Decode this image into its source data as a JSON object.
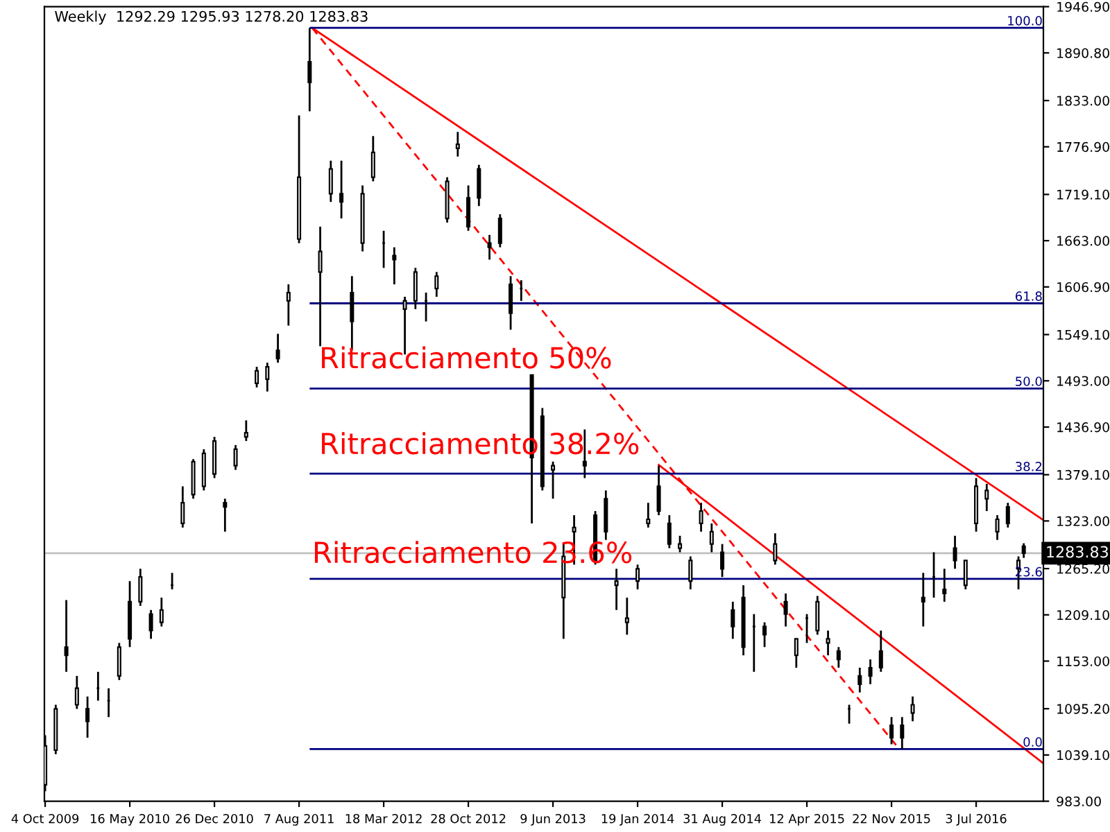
{
  "chart_data": {
    "type": "candlestick",
    "title": "Weekly  1292.29 1295.93 1278.20 1283.83",
    "x": [
      "2009-10-04",
      "2009-11-01",
      "2009-11-29",
      "2009-12-27",
      "2010-01-24",
      "2010-02-21",
      "2010-03-21",
      "2010-04-18",
      "2010-05-16",
      "2010-06-13",
      "2010-07-11",
      "2010-08-08",
      "2010-09-05",
      "2010-10-03",
      "2010-10-31",
      "2010-11-28",
      "2010-12-26",
      "2011-01-23",
      "2011-02-20",
      "2011-03-20",
      "2011-04-17",
      "2011-05-15",
      "2011-06-12",
      "2011-07-10",
      "2011-08-07",
      "2011-09-04",
      "2011-10-02",
      "2011-10-30",
      "2011-11-27",
      "2011-12-25",
      "2012-01-22",
      "2012-02-19",
      "2012-03-18",
      "2012-04-15",
      "2012-05-13",
      "2012-06-10",
      "2012-07-08",
      "2012-08-05",
      "2012-09-02",
      "2012-09-30",
      "2012-10-28",
      "2012-11-25",
      "2012-12-23",
      "2013-01-20",
      "2013-02-17",
      "2013-03-17",
      "2013-04-14",
      "2013-05-12",
      "2013-06-09",
      "2013-07-07",
      "2013-08-04",
      "2013-09-01",
      "2013-09-29",
      "2013-10-27",
      "2013-11-24",
      "2013-12-22",
      "2014-01-19",
      "2014-02-16",
      "2014-03-16",
      "2014-04-13",
      "2014-05-11",
      "2014-06-08",
      "2014-07-06",
      "2014-08-03",
      "2014-08-31",
      "2014-09-28",
      "2014-10-26",
      "2014-11-23",
      "2014-12-21",
      "2015-01-18",
      "2015-02-15",
      "2015-03-15",
      "2015-04-12",
      "2015-05-10",
      "2015-06-07",
      "2015-07-05",
      "2015-08-02",
      "2015-08-30",
      "2015-09-27",
      "2015-10-25",
      "2015-11-22",
      "2015-12-20",
      "2016-01-17",
      "2016-02-14",
      "2016-03-13",
      "2016-04-10",
      "2016-05-08",
      "2016-06-05",
      "2016-07-03",
      "2016-07-31",
      "2016-08-28",
      "2016-09-25",
      "2016-10-23",
      "2016-11-06"
    ],
    "ohlc": [
      [
        1003,
        1063,
        995,
        1050
      ],
      [
        1045,
        1100,
        1040,
        1095
      ],
      [
        1170,
        1227,
        1140,
        1160
      ],
      [
        1100,
        1135,
        1095,
        1120
      ],
      [
        1095,
        1110,
        1060,
        1080
      ],
      [
        1120,
        1140,
        1105,
        1120
      ],
      [
        1105,
        1120,
        1085,
        1105
      ],
      [
        1135,
        1175,
        1130,
        1170
      ],
      [
        1225,
        1250,
        1170,
        1180
      ],
      [
        1225,
        1265,
        1220,
        1255
      ],
      [
        1210,
        1215,
        1180,
        1190
      ],
      [
        1200,
        1230,
        1195,
        1215
      ],
      [
        1245,
        1260,
        1240,
        1245
      ],
      [
        1320,
        1365,
        1315,
        1345
      ],
      [
        1355,
        1398,
        1350,
        1395
      ],
      [
        1365,
        1410,
        1360,
        1405
      ],
      [
        1380,
        1425,
        1375,
        1420
      ],
      [
        1345,
        1350,
        1310,
        1340
      ],
      [
        1390,
        1415,
        1385,
        1410
      ],
      [
        1425,
        1445,
        1420,
        1430
      ],
      [
        1490,
        1510,
        1485,
        1505
      ],
      [
        1495,
        1515,
        1480,
        1510
      ],
      [
        1530,
        1550,
        1515,
        1520
      ],
      [
        1590,
        1610,
        1560,
        1600
      ],
      [
        1665,
        1815,
        1660,
        1740
      ],
      [
        1880,
        1921,
        1820,
        1855
      ],
      [
        1625,
        1680,
        1535,
        1650
      ],
      [
        1720,
        1760,
        1710,
        1750
      ],
      [
        1720,
        1760,
        1690,
        1710
      ],
      [
        1600,
        1620,
        1530,
        1565
      ],
      [
        1660,
        1730,
        1650,
        1720
      ],
      [
        1740,
        1790,
        1735,
        1770
      ],
      [
        1660,
        1675,
        1630,
        1660
      ],
      [
        1645,
        1655,
        1610,
        1640
      ],
      [
        1580,
        1595,
        1525,
        1590
      ],
      [
        1590,
        1630,
        1580,
        1625
      ],
      [
        1590,
        1600,
        1565,
        1590
      ],
      [
        1605,
        1625,
        1595,
        1620
      ],
      [
        1690,
        1740,
        1685,
        1735
      ],
      [
        1775,
        1795,
        1765,
        1780
      ],
      [
        1715,
        1730,
        1675,
        1680
      ],
      [
        1750,
        1755,
        1705,
        1715
      ],
      [
        1660,
        1670,
        1640,
        1655
      ],
      [
        1690,
        1695,
        1655,
        1660
      ],
      [
        1610,
        1620,
        1555,
        1575
      ],
      [
        1605,
        1615,
        1590,
        1605
      ],
      [
        1500,
        1500,
        1320,
        1400
      ],
      [
        1450,
        1460,
        1360,
        1365
      ],
      [
        1385,
        1395,
        1350,
        1390
      ],
      [
        1230,
        1295,
        1180,
        1280
      ],
      [
        1310,
        1330,
        1270,
        1315
      ],
      [
        1395,
        1434,
        1375,
        1390
      ],
      [
        1330,
        1335,
        1270,
        1275
      ],
      [
        1350,
        1360,
        1300,
        1310
      ],
      [
        1245,
        1265,
        1215,
        1250
      ],
      [
        1200,
        1230,
        1185,
        1205
      ],
      [
        1250,
        1270,
        1240,
        1265
      ],
      [
        1320,
        1345,
        1315,
        1325
      ],
      [
        1365,
        1390,
        1330,
        1335
      ],
      [
        1320,
        1330,
        1290,
        1295
      ],
      [
        1290,
        1305,
        1285,
        1295
      ],
      [
        1250,
        1280,
        1240,
        1275
      ],
      [
        1320,
        1345,
        1310,
        1335
      ],
      [
        1295,
        1320,
        1285,
        1310
      ],
      [
        1285,
        1295,
        1255,
        1265
      ],
      [
        1215,
        1225,
        1180,
        1195
      ],
      [
        1230,
        1245,
        1160,
        1170
      ],
      [
        1195,
        1210,
        1140,
        1195
      ],
      [
        1195,
        1200,
        1170,
        1185
      ],
      [
        1275,
        1308,
        1270,
        1295
      ],
      [
        1225,
        1235,
        1195,
        1210
      ],
      [
        1160,
        1180,
        1145,
        1180
      ],
      [
        1205,
        1210,
        1175,
        1205
      ],
      [
        1190,
        1232,
        1185,
        1225
      ],
      [
        1175,
        1190,
        1160,
        1180
      ],
      [
        1165,
        1170,
        1145,
        1155
      ],
      [
        1095,
        1100,
        1077,
        1095
      ],
      [
        1135,
        1145,
        1115,
        1125
      ],
      [
        1145,
        1155,
        1125,
        1135
      ],
      [
        1165,
        1190,
        1140,
        1145
      ],
      [
        1075,
        1085,
        1052,
        1060
      ],
      [
        1075,
        1085,
        1046,
        1060
      ],
      [
        1090,
        1110,
        1080,
        1100
      ],
      [
        1230,
        1260,
        1195,
        1225
      ],
      [
        1255,
        1285,
        1230,
        1255
      ],
      [
        1240,
        1265,
        1225,
        1235
      ],
      [
        1290,
        1305,
        1265,
        1275
      ],
      [
        1245,
        1275,
        1240,
        1275
      ],
      [
        1320,
        1375,
        1310,
        1365
      ],
      [
        1350,
        1368,
        1335,
        1360
      ],
      [
        1310,
        1330,
        1300,
        1325
      ],
      [
        1340,
        1345,
        1315,
        1320
      ],
      [
        1265,
        1280,
        1240,
        1275
      ],
      [
        1292.29,
        1295.93,
        1278.2,
        1283.83
      ]
    ],
    "color": "#000000",
    "series": [
      {
        "type": "line",
        "color": "#ff0000",
        "line_style": "solid",
        "x": [
          "2011-09-11",
          "2016-12-28"
        ],
        "values": [
          1921,
          1324
        ]
      },
      {
        "type": "line",
        "color": "#ff0000",
        "line_style": "solid",
        "x": [
          "2014-03-16",
          "2016-12-28"
        ],
        "values": [
          1391,
          1029
        ]
      },
      {
        "type": "line",
        "color": "#ff0000",
        "line_style": "dashed",
        "x": [
          "2011-09-11",
          "2015-12-13"
        ],
        "values": [
          1921,
          1046
        ]
      }
    ],
    "ref_lines": [
      {
        "axis": "y",
        "value": 1921.2,
        "color": "#000080"
      },
      {
        "axis": "y",
        "value": 1587,
        "color": "#000080"
      },
      {
        "axis": "y",
        "value": 1483.7,
        "color": "#000080"
      },
      {
        "axis": "y",
        "value": 1380.4,
        "color": "#000080"
      },
      {
        "axis": "y",
        "value": 1252.7,
        "color": "#000080"
      },
      {
        "axis": "y",
        "value": 1046.2,
        "color": "#000080"
      },
      {
        "axis": "y",
        "value": 1283.83,
        "label": "1283.83",
        "color": "#c0c0c0"
      }
    ],
    "annotations": [
      "Ritracciamento 50%",
      "Ritracciamento 38.2%",
      "Ritracciamento 23.6%",
      {
        "text": "100.0",
        "x": "2016-12-28",
        "y": 1921.2
      },
      {
        "text": "61.8",
        "x": "2016-12-28",
        "y": 1587
      },
      {
        "text": "50.0",
        "x": "2016-12-28",
        "y": 1483.7
      },
      {
        "text": "38.2",
        "x": "2016-12-28",
        "y": 1380.4
      },
      {
        "text": "23.6",
        "x": "2016-12-28",
        "y": 1252.7
      },
      {
        "text": "0.0",
        "x": "2016-12-28",
        "y": 1046.2
      }
    ],
    "xlim": [
      "2009-10-02",
      "2016-12-28"
    ],
    "xticks": [
      {
        "value": "2009-10-04",
        "label": "4 Oct 2009"
      },
      {
        "value": "2010-05-16",
        "label": "16 May 2010"
      },
      {
        "value": "2010-12-26",
        "label": "26 Dec 2010"
      },
      {
        "value": "2011-08-07",
        "label": "7 Aug 2011"
      },
      {
        "value": "2012-03-18",
        "label": "18 Mar 2012"
      },
      {
        "value": "2012-10-28",
        "label": "28 Oct 2012"
      },
      {
        "value": "2013-06-09",
        "label": "9 Jun 2013"
      },
      {
        "value": "2014-01-19",
        "label": "19 Jan 2014"
      },
      {
        "value": "2014-08-31",
        "label": "31 Aug 2014"
      },
      {
        "value": "2015-04-12",
        "label": "12 Apr 2015"
      },
      {
        "value": "2015-11-22",
        "label": "22 Nov 2015"
      },
      {
        "value": "2016-07-03",
        "label": "3 Jul 2016"
      }
    ],
    "ylim": [
      983,
      1946.9
    ],
    "yticks": [
      {
        "value": 983,
        "label": "983.00"
      },
      {
        "value": 1039.1,
        "label": "1039.10"
      },
      {
        "value": 1095.2,
        "label": "1095.20"
      },
      {
        "value": 1153,
        "label": "1153.00"
      },
      {
        "value": 1209.1,
        "label": "1209.10"
      },
      {
        "value": 1265.2,
        "label": "1265.20"
      },
      {
        "value": 1323,
        "label": "1323.00"
      },
      {
        "value": 1379.1,
        "label": "1379.10"
      },
      {
        "value": 1436.9,
        "label": "1436.90"
      },
      {
        "value": 1493,
        "label": "1493.00"
      },
      {
        "value": 1549.1,
        "label": "1549.10"
      },
      {
        "value": 1606.9,
        "label": "1606.90"
      },
      {
        "value": 1663,
        "label": "1663.00"
      },
      {
        "value": 1719.1,
        "label": "1719.10"
      },
      {
        "value": 1776.9,
        "label": "1776.90"
      },
      {
        "value": 1833,
        "label": "1833.00"
      },
      {
        "value": 1890.8,
        "label": "1890.80"
      },
      {
        "value": 1946.9,
        "label": "1946.90"
      }
    ],
    "grid": false,
    "legend": false
  }
}
